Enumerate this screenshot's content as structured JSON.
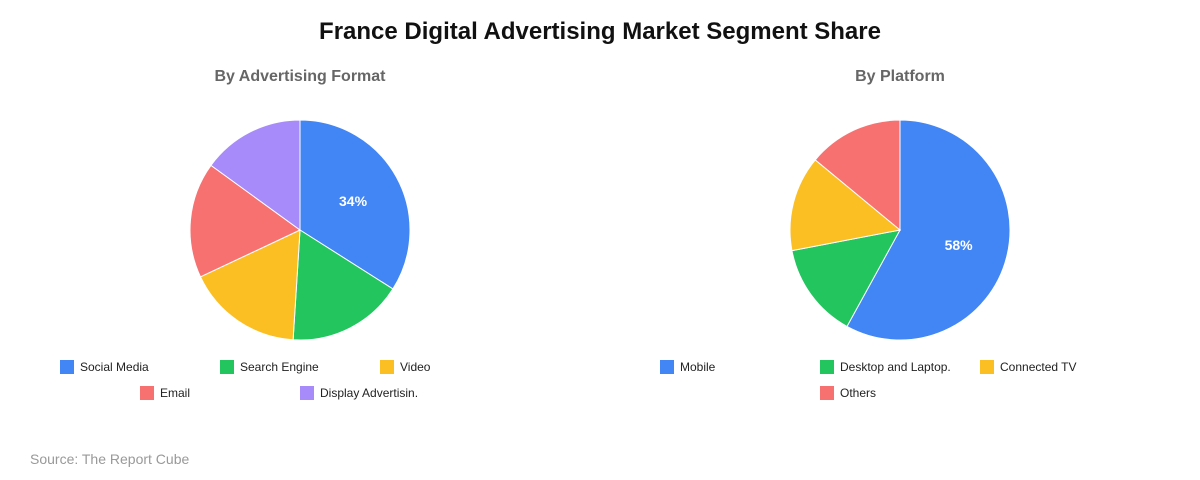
{
  "title": "France Digital Advertising Market Segment Share",
  "source": "Source: The Report Cube",
  "chart_data": [
    {
      "type": "pie",
      "title": "By Advertising Format",
      "categories": [
        "Social Media",
        "Search Engine",
        "Video",
        "Email",
        "Display Advertisin."
      ],
      "values": [
        34,
        17,
        17,
        17,
        15
      ],
      "colors": [
        "#4285f4",
        "#22c55e",
        "#fbbf24",
        "#f87171",
        "#a78bfa"
      ],
      "data_labels": [
        "34%",
        "",
        "",
        "",
        ""
      ],
      "legend_position": "bottom"
    },
    {
      "type": "pie",
      "title": "By Platform",
      "categories": [
        "Mobile",
        "Desktop and Laptop.",
        "Connected TV",
        "Others"
      ],
      "values": [
        58,
        14,
        14,
        14
      ],
      "colors": [
        "#4285f4",
        "#22c55e",
        "#fbbf24",
        "#f87171"
      ],
      "data_labels": [
        "58%",
        "",
        "",
        ""
      ],
      "legend_position": "bottom"
    }
  ]
}
